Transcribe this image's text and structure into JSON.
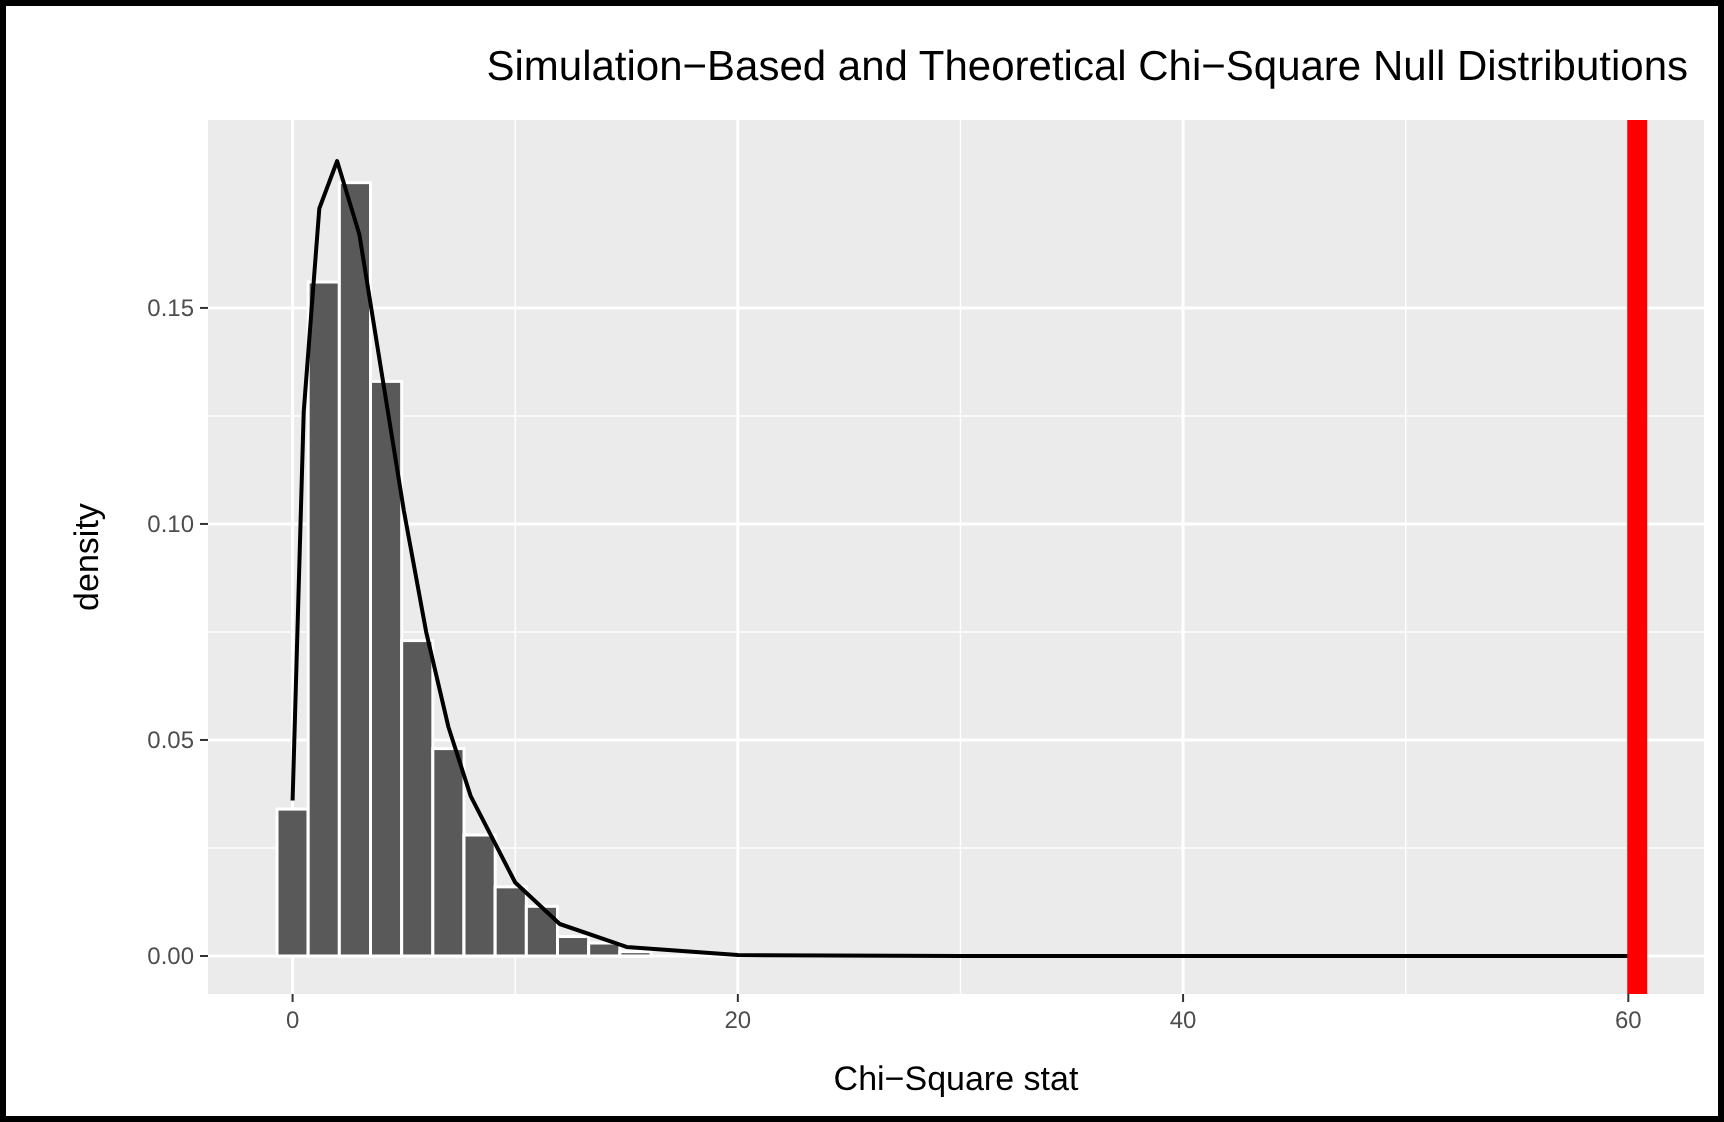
{
  "chart_data": {
    "type": "histogram",
    "title": "Simulation−Based and Theoretical Chi−Square Null Distributions",
    "xlabel": "Chi−Square stat",
    "ylabel": "density",
    "bins": [
      -0.7,
      0.7,
      2.1,
      3.5,
      4.9,
      6.3,
      7.7,
      9.1,
      10.5,
      11.9,
      13.3,
      14.7,
      16.1
    ],
    "values": [
      0.034,
      0.156,
      0.179,
      0.133,
      0.073,
      0.048,
      0.028,
      0.016,
      0.0115,
      0.0045,
      0.003,
      0.001
    ],
    "color": "#595959",
    "series": [
      {
        "type": "line",
        "color": "#000000",
        "x": [
          0,
          0.5,
          1.2,
          2,
          3,
          4,
          5,
          6,
          7,
          8,
          10,
          12,
          15,
          20,
          30,
          45,
          60
        ],
        "values": [
          0.036,
          0.126,
          0.173,
          0.184,
          0.167,
          0.135,
          0.103,
          0.075,
          0.053,
          0.037,
          0.017,
          0.0074,
          0.0021,
          0.0002,
          0,
          0,
          0
        ]
      }
    ],
    "ref_lines": [
      {
        "axis": "x",
        "value": 60.4,
        "color": "#ff0000"
      }
    ],
    "xlim": [
      -3.8,
      63.4
    ],
    "ylim": [
      -0.0088,
      0.1935
    ],
    "xticks": [
      0,
      20,
      40,
      60
    ],
    "yticks": [
      {
        "value": 0,
        "label": "0.00"
      },
      {
        "value": 0.05,
        "label": "0.05"
      },
      {
        "value": 0.1,
        "label": "0.10"
      },
      {
        "value": 0.15,
        "label": "0.15"
      }
    ],
    "grid": true
  }
}
